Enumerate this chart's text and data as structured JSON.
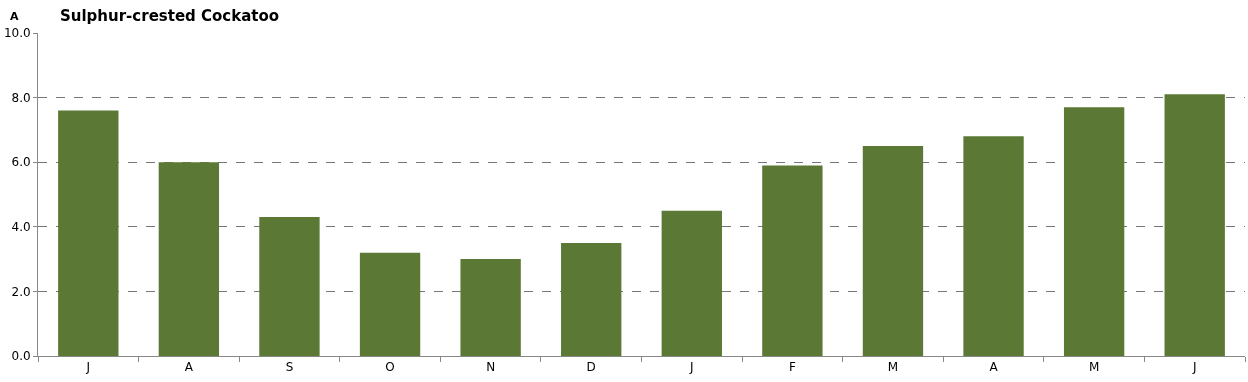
{
  "chart_data": {
    "type": "bar",
    "title": "Sulphur-crested Cockatoo",
    "annotations": [
      "A"
    ],
    "categories": [
      "J",
      "A",
      "S",
      "O",
      "N",
      "D",
      "J",
      "F",
      "M",
      "A",
      "M",
      "J"
    ],
    "values": [
      7.6,
      6.0,
      4.3,
      3.2,
      3.0,
      3.5,
      4.5,
      5.9,
      6.5,
      6.8,
      7.7,
      8.1
    ],
    "color": "#5b7834",
    "ylim": [
      0,
      10
    ],
    "yticks": [
      {
        "value": 0,
        "label": "0.0"
      },
      {
        "value": 2,
        "label": "2.0"
      },
      {
        "value": 4,
        "label": "4.0"
      },
      {
        "value": 6,
        "label": "6.0"
      },
      {
        "value": 8,
        "label": "8.0"
      },
      {
        "value": 10,
        "label": "10.0"
      }
    ],
    "grid": "y"
  }
}
